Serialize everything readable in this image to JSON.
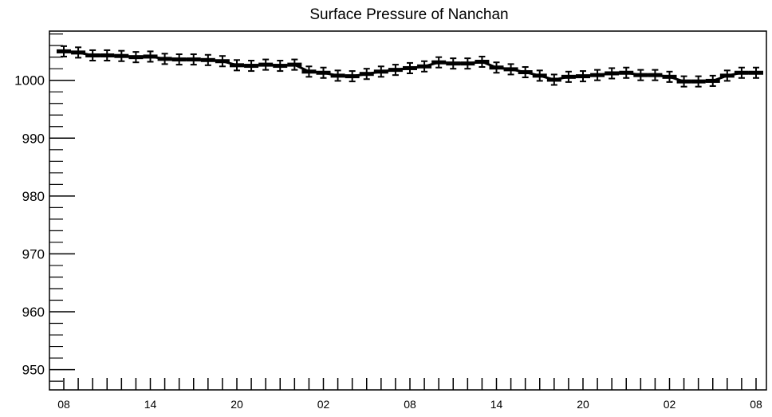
{
  "chart_data": {
    "type": "line",
    "title": "Surface Pressure of Nanchan",
    "xlabel": "",
    "ylabel": "",
    "ylim": [
      946.5,
      1008.5
    ],
    "y_ticks": [
      950,
      960,
      970,
      980,
      990,
      1000
    ],
    "x_tick_labels": [
      "08",
      "14",
      "20",
      "02",
      "08",
      "14",
      "20",
      "02",
      "08"
    ],
    "grid": false,
    "series": [
      {
        "values": [
          1005.0,
          1004.8,
          1004.3,
          1004.3,
          1004.2,
          1004.0,
          1004.1,
          1003.7,
          1003.6,
          1003.6,
          1003.5,
          1003.3,
          1002.6,
          1002.5,
          1002.7,
          1002.5,
          1002.7,
          1001.5,
          1001.3,
          1000.8,
          1000.7,
          1001.1,
          1001.5,
          1001.8,
          1002.1,
          1002.4,
          1003.1,
          1002.9,
          1002.9,
          1003.2,
          1002.2,
          1001.9,
          1001.4,
          1000.8,
          1000.1,
          1000.6,
          1000.7,
          1000.9,
          1001.2,
          1001.3,
          1000.9,
          1000.9,
          1000.6,
          999.8,
          999.8,
          999.9,
          1000.8,
          1001.3,
          1001.3
        ],
        "error": 0.9
      }
    ]
  }
}
